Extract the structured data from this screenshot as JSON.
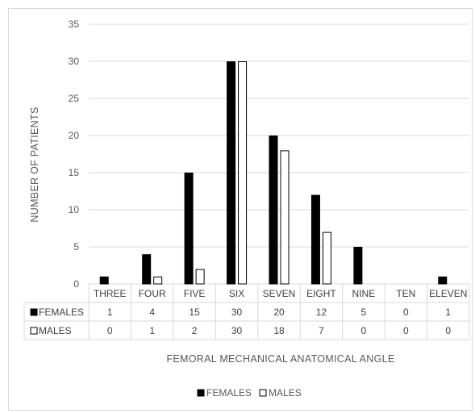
{
  "chart_data": {
    "type": "bar",
    "title": "",
    "xlabel": "FEMORAL MECHANICAL ANATOMICAL ANGLE",
    "ylabel": "NUMBER OF PATIENTS",
    "ylim": [
      0,
      35
    ],
    "yticks": [
      "0",
      "5",
      "10",
      "15",
      "20",
      "25",
      "30",
      "35"
    ],
    "grid": true,
    "legend_position": "bottom",
    "categories": [
      "THREE",
      "FOUR",
      "FIVE",
      "SIX",
      "SEVEN",
      "EIGHT",
      "NINE",
      "TEN",
      "ELEVEN"
    ],
    "series": [
      {
        "name": "FEMALES",
        "values": [
          1,
          4,
          15,
          30,
          20,
          12,
          5,
          0,
          1
        ],
        "fill": "#000000",
        "stroke": "#000000"
      },
      {
        "name": "MALES",
        "values": [
          0,
          1,
          2,
          30,
          18,
          7,
          0,
          0,
          0
        ],
        "fill": "#ffffff",
        "stroke": "#000000"
      }
    ],
    "data_table": {
      "rows": [
        {
          "label": "FEMALES",
          "cells": [
            "1",
            "4",
            "15",
            "30",
            "20",
            "12",
            "5",
            "0",
            "1"
          ]
        },
        {
          "label": "MALES",
          "cells": [
            "0",
            "1",
            "2",
            "30",
            "18",
            "7",
            "0",
            "0",
            "0"
          ]
        }
      ]
    },
    "colors": {
      "grid": "#d9d9d9",
      "text": "#595959"
    }
  }
}
